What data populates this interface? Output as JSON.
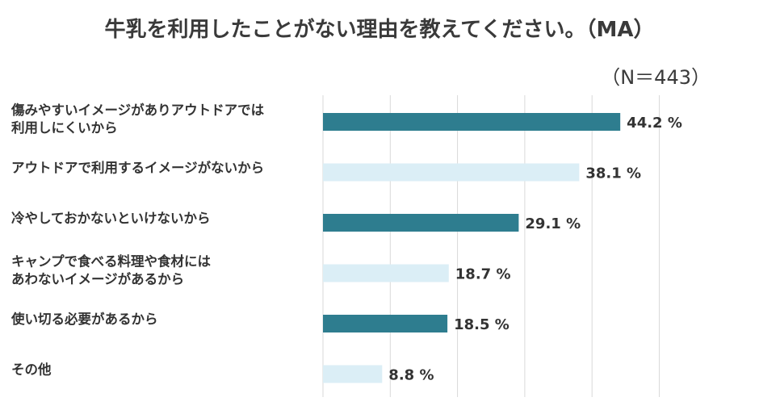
{
  "chart_data": {
    "type": "bar",
    "orientation": "horizontal",
    "title": "牛乳を利用したことがない理由を教えてください。（MA）",
    "sample_size": "（N＝443）",
    "categories": [
      [
        "傷みやすいイメージがありアウトドアでは",
        "利用しにくいから"
      ],
      [
        "アウトドアで利用するイメージがないから"
      ],
      [
        "冷やしておかないといけないから"
      ],
      [
        "キャンプで食べる料理や食材には",
        "あわないイメージがあるから"
      ],
      [
        "使い切る必要があるから"
      ],
      [
        "その他"
      ]
    ],
    "values": [
      44.2,
      38.1,
      29.1,
      18.7,
      18.5,
      8.8
    ],
    "value_labels": [
      "44.2 %",
      "38.1 %",
      "29.1 %",
      "18.7 %",
      "18.5 %",
      "8.8 %"
    ],
    "xlim": [
      0,
      50
    ],
    "grid": true,
    "bar_colors": [
      "#2e7d8f",
      "#dbeef6",
      "#2e7d8f",
      "#dbeef6",
      "#2e7d8f",
      "#dbeef6"
    ]
  }
}
